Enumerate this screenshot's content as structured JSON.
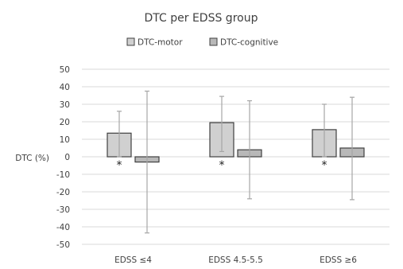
{
  "chart_data": {
    "type": "bar",
    "title": "DTC per EDSS group",
    "ylabel": "DTC (%)",
    "xlabel": "",
    "ylim": [
      -50,
      50
    ],
    "ytick_step": 10,
    "grid": true,
    "legend_position": "top",
    "categories": [
      "EDSS ≤4",
      "EDSS 4.5-5.5",
      "EDSS ≥6"
    ],
    "series": [
      {
        "name": "DTC-motor",
        "fill": "#d0d0d0",
        "values": [
          13.5,
          19.5,
          15.5
        ],
        "error_upper": [
          26,
          34.5,
          30
        ],
        "error_lower": [
          0,
          3,
          0
        ],
        "significance": [
          "*",
          "*",
          "*"
        ]
      },
      {
        "name": "DTC-cognitive",
        "fill": "#b8b8b8",
        "values": [
          -3,
          4,
          5
        ],
        "error_upper": [
          37.5,
          32,
          34
        ],
        "error_lower": [
          -43.5,
          -24,
          -24.5
        ],
        "significance": [
          "",
          "",
          ""
        ]
      }
    ],
    "colors": {
      "bar_stroke": "#404040",
      "error_bar": "#a6a6a6",
      "grid": "#d9d9d9"
    }
  }
}
